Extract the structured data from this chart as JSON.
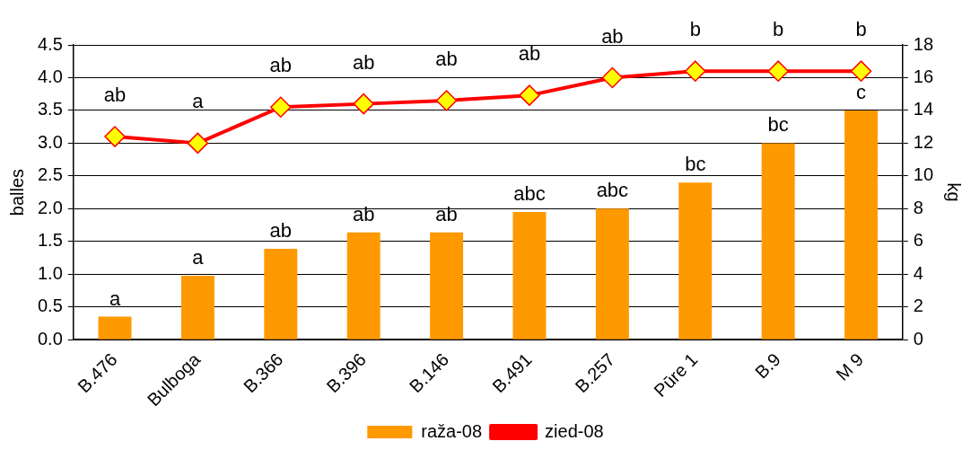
{
  "chart_data": {
    "type": "bar",
    "ylabel": "balles",
    "y2label": "kg",
    "categories": [
      "B.476",
      "Bulboga",
      "B.366",
      "B.396",
      "B.146",
      "B.491",
      "B.257",
      "Pūre 1",
      "B.9",
      "M 9"
    ],
    "series": [
      {
        "name": "raža-08",
        "axis": "y2",
        "color": "#ff9900",
        "values": [
          1.4,
          3.9,
          5.55,
          6.55,
          6.55,
          7.8,
          8.0,
          9.6,
          12.0,
          14.0
        ],
        "value_labels": [
          "a",
          "a",
          "ab",
          "ab",
          "ab",
          "abc",
          "abc",
          "bc",
          "bc",
          "c"
        ]
      },
      {
        "name": "zied-08",
        "type": "line",
        "axis": "y",
        "color": "#ff0000",
        "marker": "diamond",
        "values": [
          3.1,
          3.0,
          3.55,
          3.6,
          3.65,
          3.73,
          4.0,
          4.1,
          4.1,
          4.1
        ],
        "value_labels": [
          "ab",
          "a",
          "ab",
          "ab",
          "ab",
          "ab",
          "ab",
          "b",
          "b",
          "b"
        ]
      }
    ],
    "ylim": [
      0,
      4.5
    ],
    "yticks": [
      {
        "value": 0,
        "label": "0.0"
      },
      0.5,
      {
        "value": 1,
        "label": "1.0"
      },
      1.5,
      {
        "value": 2,
        "label": "2.0"
      },
      2.5,
      {
        "value": 3,
        "label": "3.0"
      },
      3.5,
      {
        "value": 4,
        "label": "4.0"
      },
      4.5
    ],
    "y2lim": [
      0,
      18
    ],
    "y2ticks": [
      0,
      2,
      4,
      6,
      8,
      10,
      12,
      14,
      16,
      18
    ],
    "grid": "y",
    "legend": "bottom"
  }
}
